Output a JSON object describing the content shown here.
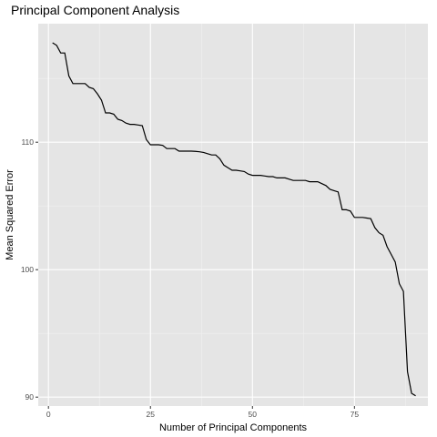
{
  "chart_data": {
    "type": "line",
    "title": "Principal Component Analysis",
    "xlabel": "Number of Principal Components",
    "ylabel": "Mean Squared Error",
    "xlim": [
      -2.5,
      93
    ],
    "ylim": [
      89.3,
      119.3
    ],
    "xticks": [
      0,
      25,
      50,
      75
    ],
    "yticks": [
      90,
      100,
      110
    ],
    "grid": true,
    "legend": "none",
    "colors": {
      "panel": "#E5E5E5",
      "grid_major": "#FFFFFF",
      "grid_minor": "#F1F1F1",
      "line": "#000000",
      "tick_label": "#4D4D4D"
    },
    "series": [
      {
        "x": [
          1,
          2,
          3,
          4,
          5,
          6,
          7,
          8,
          9,
          10,
          11,
          12,
          13,
          14,
          15,
          16,
          17,
          18,
          19,
          20,
          21,
          22,
          23,
          24,
          25,
          26,
          27,
          28,
          29,
          30,
          31,
          32,
          33,
          34,
          35,
          36,
          37,
          38,
          39,
          40,
          41,
          42,
          43,
          44,
          45,
          46,
          47,
          48,
          49,
          50,
          51,
          52,
          53,
          54,
          55,
          56,
          57,
          58,
          59,
          60,
          61,
          62,
          63,
          64,
          65,
          66,
          67,
          68,
          69,
          70,
          71,
          72,
          73,
          74,
          75,
          76,
          77,
          78,
          79,
          80,
          81,
          82,
          83,
          84,
          85,
          86,
          87,
          88,
          89,
          90
        ],
        "y": [
          117.8,
          117.6,
          117.0,
          117.0,
          115.2,
          114.6,
          114.6,
          114.6,
          114.6,
          114.3,
          114.2,
          113.8,
          113.3,
          112.3,
          112.3,
          112.2,
          111.8,
          111.7,
          111.5,
          111.4,
          111.4,
          111.35,
          111.3,
          110.2,
          109.8,
          109.8,
          109.8,
          109.75,
          109.5,
          109.5,
          109.5,
          109.3,
          109.3,
          109.3,
          109.3,
          109.28,
          109.25,
          109.2,
          109.1,
          109.0,
          109.0,
          108.7,
          108.2,
          108.0,
          107.8,
          107.8,
          107.75,
          107.7,
          107.5,
          107.4,
          107.4,
          107.4,
          107.35,
          107.3,
          107.3,
          107.2,
          107.2,
          107.2,
          107.1,
          107.0,
          107.0,
          107.0,
          107.0,
          106.9,
          106.9,
          106.9,
          106.75,
          106.6,
          106.3,
          106.2,
          106.1,
          104.7,
          104.7,
          104.6,
          104.1,
          104.1,
          104.1,
          104.05,
          104.0,
          103.3,
          102.9,
          102.7,
          101.8,
          101.2,
          100.6,
          98.9,
          98.3,
          92.0,
          90.3,
          90.1
        ]
      }
    ]
  }
}
